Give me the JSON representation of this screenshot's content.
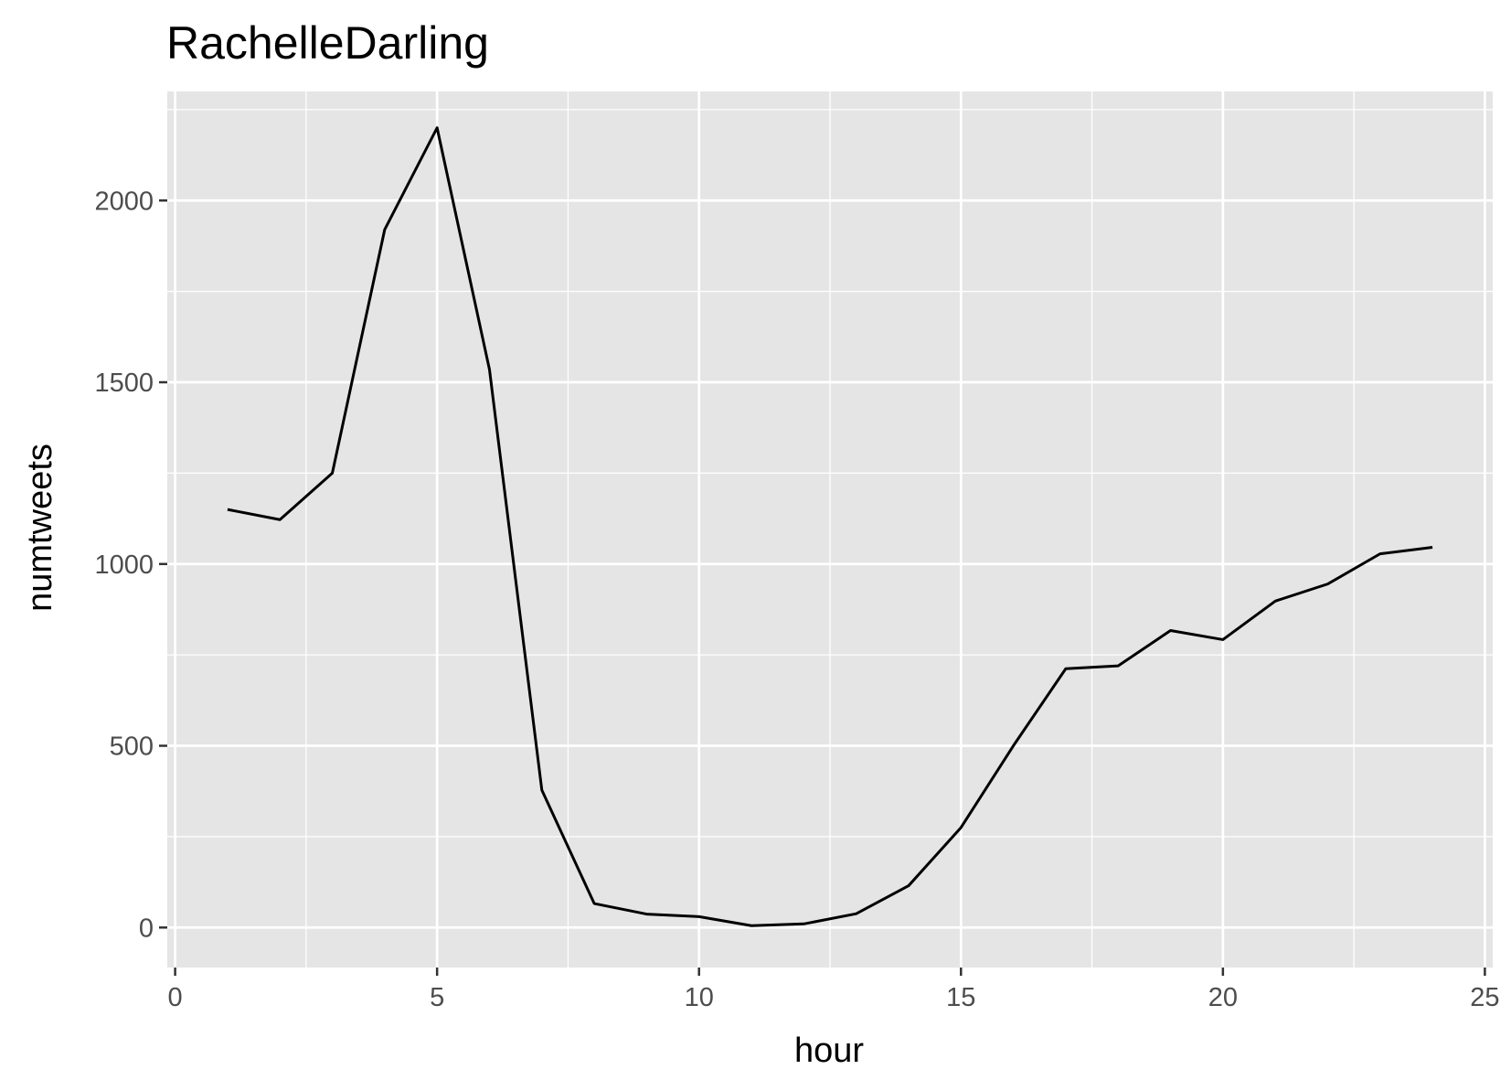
{
  "chart_data": {
    "type": "line",
    "title": "RachelleDarling",
    "xlabel": "hour",
    "ylabel": "numtweets",
    "xlim": [
      -0.15,
      25.15
    ],
    "ylim": [
      -110,
      2300
    ],
    "x_ticks": [
      0,
      5,
      10,
      15,
      20,
      25
    ],
    "y_ticks": [
      0,
      500,
      1000,
      1500,
      2000
    ],
    "x_tick_labels": [
      "0",
      "5",
      "10",
      "15",
      "20",
      "25"
    ],
    "y_tick_labels": [
      "0",
      "500",
      "1000",
      "1500",
      "2000"
    ],
    "x_minor_ticks": [
      2.5,
      7.5,
      12.5,
      17.5,
      22.5
    ],
    "y_minor_ticks": [
      250,
      750,
      1250,
      1750,
      2250
    ],
    "grid": true,
    "series": [
      {
        "x": [
          1,
          2,
          3,
          4,
          5,
          6,
          7,
          8,
          9,
          10,
          11,
          12,
          13,
          14,
          15,
          16,
          17,
          18,
          19,
          20,
          21,
          22,
          23,
          24
        ],
        "y": [
          1150,
          1122,
          1250,
          1920,
          2200,
          1535,
          378,
          66,
          37,
          30,
          5,
          10,
          38,
          115,
          275,
          500,
          712,
          720,
          817,
          792,
          898,
          945,
          1028,
          1046
        ],
        "color": "#000000"
      }
    ],
    "panel_background": "#e5e5e5",
    "grid_color": "#ffffff"
  }
}
